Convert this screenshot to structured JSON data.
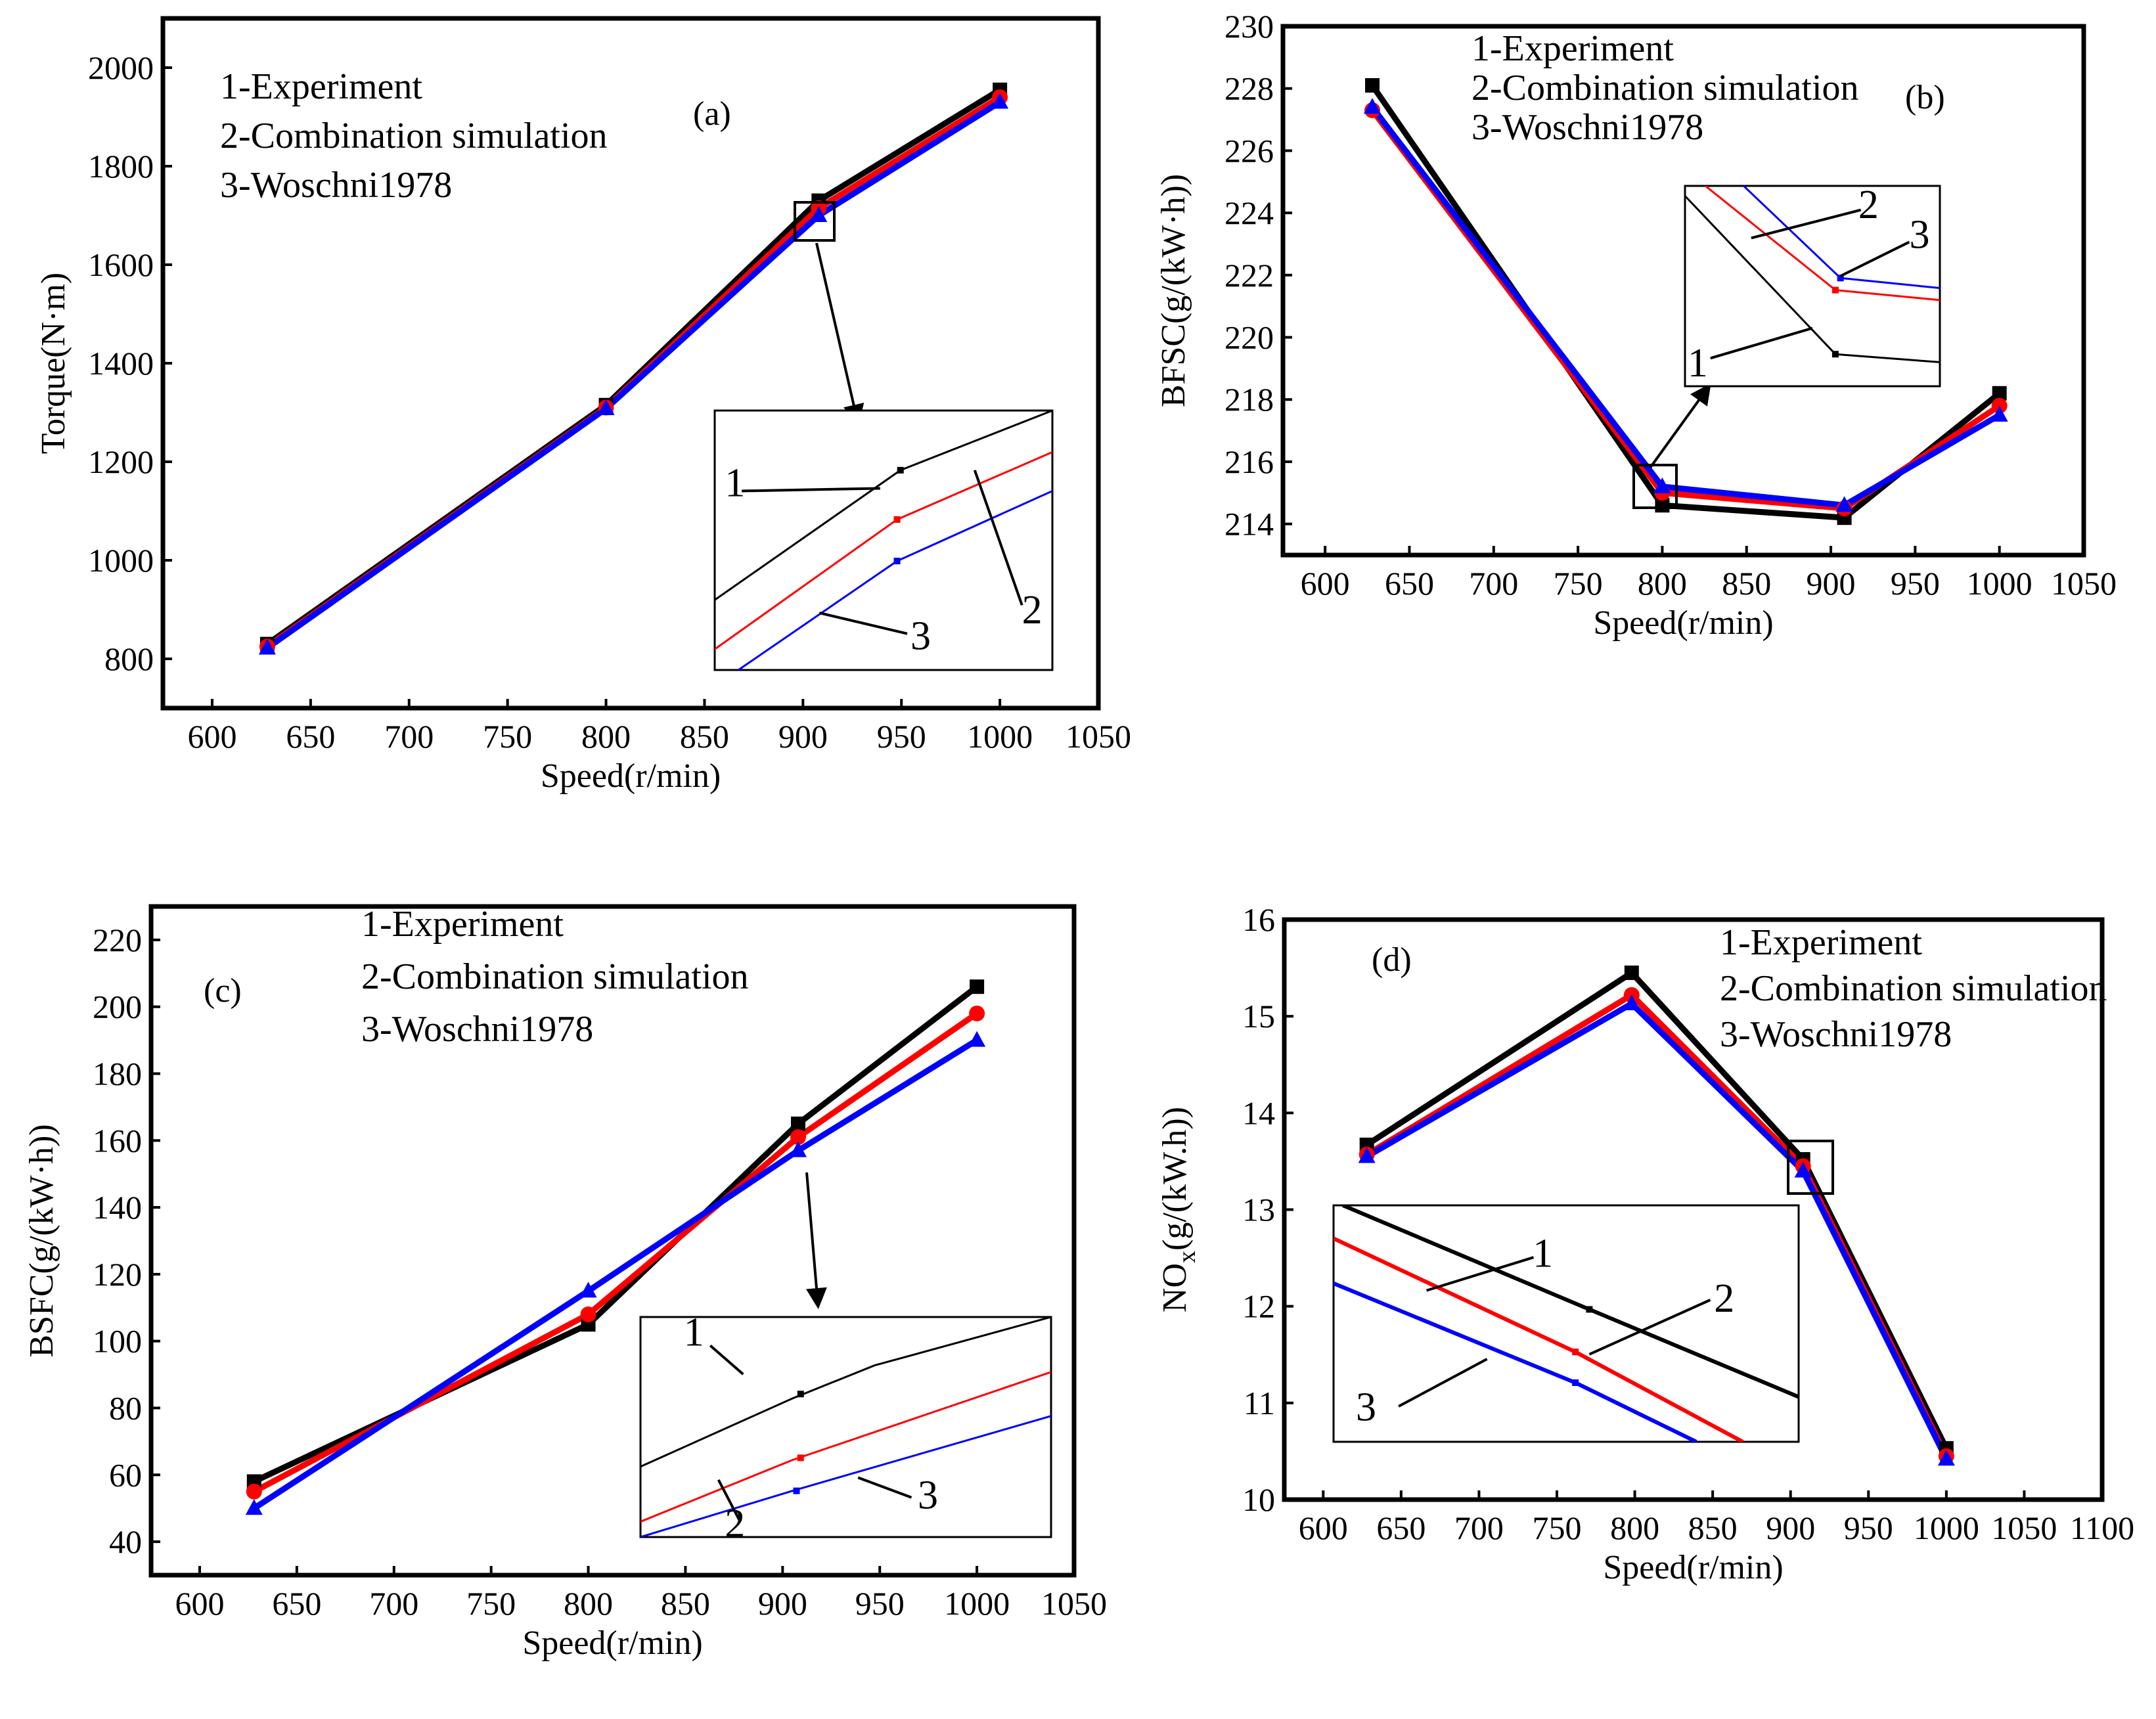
{
  "chart_data": [
    {
      "id": "a",
      "type": "line",
      "panel_label": "(a)",
      "xlabel": "Speed(r/min)",
      "ylabel": "Torque(N·m)",
      "xlim": [
        575,
        1050
      ],
      "ylim": [
        700,
        2100
      ],
      "xticks": [
        600,
        650,
        700,
        750,
        800,
        850,
        900,
        950,
        1000,
        1050
      ],
      "yticks": [
        800,
        1000,
        1200,
        1400,
        1600,
        1800,
        2000
      ],
      "legend": [
        "1-Experiment",
        "2-Combination simulation",
        "3-Woschni1978"
      ],
      "x": [
        628,
        800,
        908,
        1000
      ],
      "series": [
        {
          "name": "1-Experiment",
          "values": [
            830,
            1315,
            1730,
            1955
          ]
        },
        {
          "name": "2-Combination simulation",
          "values": [
            825,
            1310,
            1715,
            1940
          ]
        },
        {
          "name": "3-Woschni1978",
          "values": [
            822,
            1308,
            1700,
            1930
          ]
        }
      ],
      "inset": {
        "callouts": [
          "1",
          "2",
          "3"
        ]
      }
    },
    {
      "id": "b",
      "type": "line",
      "panel_label": "(b)",
      "xlabel": "Speed(r/min)",
      "ylabel": "BFSC(g/(kW·h))",
      "xlim": [
        575,
        1050
      ],
      "ylim": [
        213,
        230
      ],
      "xticks": [
        600,
        650,
        700,
        750,
        800,
        850,
        900,
        950,
        1000,
        1050
      ],
      "yticks": [
        214,
        216,
        218,
        220,
        222,
        224,
        226,
        228,
        230
      ],
      "legend": [
        "1-Experiment",
        "2-Combination simulation",
        "3-Woschni1978"
      ],
      "x": [
        628,
        800,
        908,
        1000
      ],
      "series": [
        {
          "name": "1-Experiment",
          "values": [
            228.1,
            214.6,
            214.2,
            218.2
          ]
        },
        {
          "name": "2-Combination simulation",
          "values": [
            227.3,
            215.0,
            214.5,
            217.8
          ]
        },
        {
          "name": "3-Woschni1978",
          "values": [
            227.4,
            215.2,
            214.6,
            217.5
          ]
        }
      ],
      "inset": {
        "callouts": [
          "2",
          "3",
          "1"
        ]
      }
    },
    {
      "id": "c",
      "type": "line",
      "panel_label": "(c)",
      "xlabel": "Speed(r/min)",
      "ylabel": "BSFC(g/(kW·h))",
      "xlim": [
        575,
        1050
      ],
      "ylim": [
        30,
        230
      ],
      "xticks": [
        600,
        650,
        700,
        750,
        800,
        850,
        900,
        950,
        1000,
        1050
      ],
      "yticks": [
        40,
        60,
        80,
        100,
        120,
        140,
        160,
        180,
        200,
        220
      ],
      "legend": [
        "1-Experiment",
        "2-Combination simulation",
        "3-Woschni1978"
      ],
      "x": [
        628,
        800,
        908,
        1000
      ],
      "series": [
        {
          "name": "1-Experiment",
          "values": [
            58,
            105,
            165,
            206
          ]
        },
        {
          "name": "2-Combination simulation",
          "values": [
            55,
            108,
            161,
            198
          ]
        },
        {
          "name": "3-Woschni1978",
          "values": [
            50,
            115,
            157,
            190
          ]
        }
      ],
      "inset": {
        "callouts": [
          "1",
          "2",
          "3"
        ]
      }
    },
    {
      "id": "d",
      "type": "line",
      "panel_label": "(d)",
      "xlabel": "Speed(r/min)",
      "ylabel": "NOₓ(g/(kW.h))",
      "ylabel_main": "NO",
      "ylabel_sub": "x",
      "ylabel_rest": "(g/(kW.h))",
      "xlim": [
        575,
        1100
      ],
      "ylim": [
        10,
        16
      ],
      "xticks": [
        600,
        650,
        700,
        750,
        800,
        850,
        900,
        950,
        1000,
        1050,
        1100
      ],
      "yticks": [
        10,
        11,
        12,
        13,
        14,
        15,
        16
      ],
      "legend": [
        "1-Experiment",
        "2-Combination simulation",
        "3-Woschni1978"
      ],
      "x": [
        628,
        798,
        908,
        1000
      ],
      "series": [
        {
          "name": "1-Experiment",
          "values": [
            13.67,
            15.45,
            13.52,
            10.53
          ]
        },
        {
          "name": "2-Combination simulation",
          "values": [
            13.57,
            15.22,
            13.45,
            10.45
          ]
        },
        {
          "name": "3-Woschni1978",
          "values": [
            13.55,
            15.13,
            13.4,
            10.42
          ]
        }
      ],
      "inset": {
        "callouts": [
          "1",
          "2",
          "3"
        ]
      }
    }
  ],
  "colors": {
    "experiment": "#000000",
    "combination": "#ff0000",
    "woschni": "#0000ff"
  }
}
